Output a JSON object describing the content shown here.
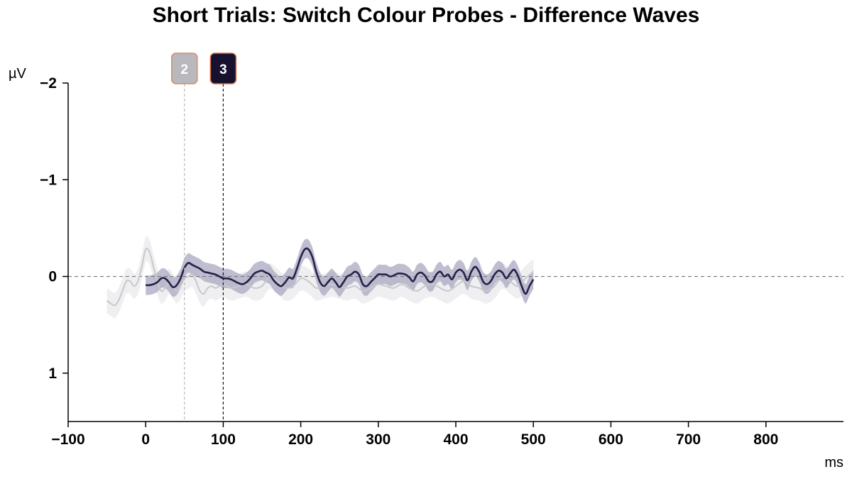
{
  "chart_data": {
    "type": "line",
    "title": "Short Trials: Switch Colour Probes - Difference Waves",
    "xlabel": "ms",
    "ylabel": "µV",
    "xlim": [
      -100,
      900
    ],
    "ylim": [
      -2,
      1.5
    ],
    "y_inverted": true,
    "x_ticks": [
      -100,
      0,
      100,
      200,
      300,
      400,
      500,
      600,
      700,
      800
    ],
    "x_tick_labels": [
      "−100",
      "0",
      "100",
      "200",
      "300",
      "400",
      "500",
      "600",
      "700",
      "800"
    ],
    "y_ticks": [
      -2,
      -1,
      0,
      1
    ],
    "y_tick_labels": [
      "−2",
      "−1",
      "0",
      "1"
    ],
    "grid": false,
    "zero_line": true,
    "series": [
      {
        "color": "#c8c8cc",
        "band_color": "#ebebed",
        "x": [
          -50,
          -45,
          -40,
          -35,
          -30,
          -25,
          -20,
          -15,
          -10,
          -5,
          0,
          5,
          10,
          15,
          20,
          25,
          30,
          35,
          40,
          45,
          50,
          55,
          60,
          65,
          70,
          75,
          80,
          85,
          90,
          95,
          100,
          110,
          120,
          130,
          140,
          150,
          160,
          170,
          180,
          190,
          200,
          210,
          220,
          230,
          240,
          250,
          260,
          270,
          280,
          290,
          300,
          310,
          320,
          330,
          340,
          350,
          360,
          370,
          380,
          390,
          400,
          410,
          420,
          430,
          440,
          450,
          460,
          470,
          480,
          490,
          500
        ],
        "y": [
          0.25,
          0.28,
          0.3,
          0.25,
          0.15,
          0.05,
          0.05,
          0.1,
          0.05,
          -0.1,
          -0.28,
          -0.25,
          -0.1,
          0.05,
          0.15,
          0.12,
          0.05,
          0.1,
          0.15,
          0.1,
          0.02,
          0.0,
          -0.02,
          0.05,
          0.15,
          0.18,
          0.12,
          0.1,
          0.12,
          0.1,
          0.08,
          0.12,
          0.1,
          0.08,
          0.12,
          0.1,
          0.0,
          0.05,
          0.12,
          0.1,
          0.02,
          0.05,
          0.12,
          0.1,
          0.08,
          0.1,
          0.12,
          0.1,
          0.15,
          0.12,
          0.08,
          0.1,
          0.12,
          0.08,
          0.12,
          0.15,
          0.1,
          0.08,
          0.12,
          0.15,
          0.1,
          0.05,
          0.1,
          0.12,
          0.15,
          0.1,
          0.0,
          0.05,
          0.1,
          0.02,
          -0.05
        ],
        "ci": 0.13
      },
      {
        "color": "#24214a",
        "band_color": "#aaa8c0",
        "x": [
          0,
          5,
          10,
          15,
          20,
          25,
          30,
          35,
          40,
          45,
          50,
          55,
          60,
          65,
          70,
          75,
          80,
          85,
          90,
          95,
          100,
          105,
          110,
          115,
          120,
          125,
          130,
          135,
          140,
          145,
          150,
          155,
          160,
          165,
          170,
          175,
          180,
          185,
          190,
          195,
          200,
          205,
          210,
          215,
          220,
          225,
          230,
          235,
          240,
          245,
          250,
          255,
          260,
          265,
          270,
          275,
          280,
          285,
          290,
          295,
          300,
          305,
          310,
          315,
          320,
          325,
          330,
          335,
          340,
          345,
          350,
          355,
          360,
          365,
          370,
          375,
          380,
          385,
          390,
          395,
          400,
          405,
          410,
          415,
          420,
          425,
          430,
          435,
          440,
          445,
          450,
          455,
          460,
          465,
          470,
          475,
          480,
          485,
          490,
          495,
          500
        ],
        "y": [
          0.09,
          0.09,
          0.08,
          0.06,
          0.02,
          0.02,
          0.06,
          0.11,
          0.09,
          0.02,
          -0.09,
          -0.14,
          -0.12,
          -0.1,
          -0.08,
          -0.05,
          -0.04,
          -0.03,
          -0.02,
          0.0,
          0.02,
          0.02,
          0.03,
          0.05,
          0.07,
          0.08,
          0.06,
          0.02,
          -0.03,
          -0.05,
          -0.06,
          -0.04,
          -0.02,
          0.04,
          0.08,
          0.1,
          0.06,
          0.01,
          0.02,
          -0.08,
          -0.2,
          -0.28,
          -0.28,
          -0.2,
          -0.05,
          0.06,
          0.1,
          0.06,
          0.02,
          0.06,
          0.11,
          0.06,
          0.0,
          -0.02,
          -0.05,
          -0.02,
          0.08,
          0.1,
          0.06,
          0.02,
          -0.02,
          -0.02,
          -0.02,
          0.0,
          -0.01,
          -0.03,
          -0.03,
          -0.02,
          0.01,
          0.05,
          -0.02,
          -0.04,
          -0.01,
          0.05,
          0.05,
          -0.02,
          -0.05,
          0.0,
          -0.02,
          0.03,
          -0.04,
          -0.07,
          -0.04,
          0.04,
          -0.05,
          -0.1,
          -0.05,
          0.05,
          0.08,
          0.05,
          -0.02,
          -0.06,
          -0.04,
          0.02,
          -0.03,
          -0.07,
          -0.01,
          0.1,
          0.18,
          0.1,
          0.03
        ],
        "ci": 0.1
      }
    ],
    "markers": [
      {
        "label": "2",
        "x": 50,
        "color": "#b8b8bd",
        "border": "#d98a6a"
      },
      {
        "label": "3",
        "x": 100,
        "color": "#15112e",
        "border": "#d96a3a"
      }
    ]
  }
}
